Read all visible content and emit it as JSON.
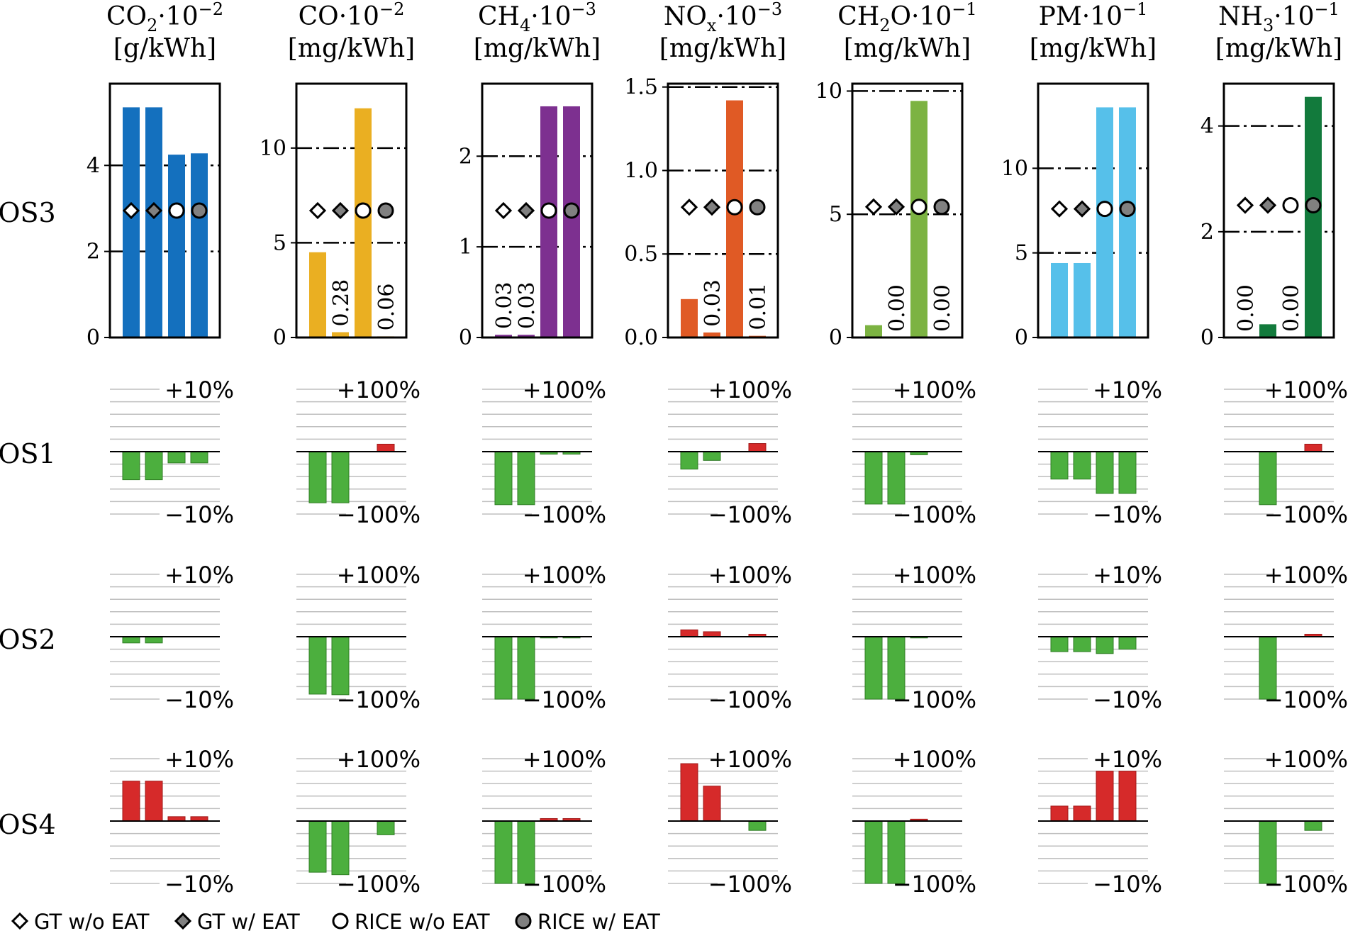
{
  "chart_data": {
    "type": "bar",
    "legend": {
      "placement": "bottom",
      "entries": [
        {
          "label": "GT w/o EAT",
          "marker": "diamond",
          "fill": "#ffffff"
        },
        {
          "label": "GT w/ EAT",
          "marker": "diamond",
          "fill": "#808080"
        },
        {
          "label": "RICE w/o EAT",
          "marker": "circle",
          "fill": "#ffffff"
        },
        {
          "label": "RICE w/ EAT",
          "marker": "circle",
          "fill": "#808080"
        }
      ]
    },
    "rows": [
      "OS3",
      "OS1",
      "OS2",
      "OS4"
    ],
    "panels": [
      {
        "header": {
          "base": "CO",
          "sub": "2",
          "rest": "·10",
          "exp": "−2",
          "unit": "[g/kWh]"
        },
        "color": "#1470be",
        "ylim": [
          0,
          5.9
        ],
        "yticks": [
          0,
          2,
          4
        ],
        "ytick_labels": [
          "0",
          "2",
          "4"
        ],
        "dashed_lines": [
          2,
          4
        ],
        "values": [
          5.35,
          5.35,
          4.25,
          4.28
        ],
        "value_labels": [],
        "markers_y": 2.95,
        "pct_labels": [
          "+10%",
          "−10%"
        ],
        "pct_scale": 10,
        "OS1": [
          -4.5,
          -4.5,
          -1.8,
          -1.8
        ],
        "OS2": [
          -1.0,
          -1.0,
          0,
          0
        ],
        "OS4": [
          6.4,
          6.4,
          0.7,
          0.7
        ]
      },
      {
        "header": {
          "base": "CO",
          "sub": "",
          "rest": "·10",
          "exp": "−2",
          "unit": "[mg/kWh]"
        },
        "color": "#eaaf22",
        "ylim": [
          0,
          13.4
        ],
        "yticks": [
          0,
          5,
          10
        ],
        "ytick_labels": [
          "0",
          "5",
          "10"
        ],
        "dashed_lines": [
          5,
          10
        ],
        "values": [
          4.5,
          0.28,
          12.1,
          0.06
        ],
        "value_labels": [
          "",
          "0.28",
          "",
          "0.06"
        ],
        "markers_y": 6.7,
        "pct_labels": [
          "+100%",
          "−100%"
        ],
        "pct_scale": 100,
        "OS1": [
          -82,
          -82,
          0,
          12
        ],
        "OS2": [
          -92,
          -93,
          0,
          0
        ],
        "OS4": [
          -82,
          -86,
          0,
          -22
        ]
      },
      {
        "header": {
          "base": "CH",
          "sub": "4",
          "rest": "·10",
          "exp": "−3",
          "unit": "[mg/kWh]"
        },
        "color": "#7d3090",
        "ylim": [
          0,
          2.8
        ],
        "yticks": [
          0,
          1,
          2
        ],
        "ytick_labels": [
          "0",
          "1",
          "2"
        ],
        "dashed_lines": [
          1,
          2
        ],
        "values": [
          0.03,
          0.03,
          2.55,
          2.55
        ],
        "value_labels": [
          "0.03",
          "0.03",
          "",
          ""
        ],
        "markers_y": 1.4,
        "pct_labels": [
          "+100%",
          "−100%"
        ],
        "pct_scale": 100,
        "OS1": [
          -85,
          -85,
          -4,
          -4
        ],
        "OS2": [
          -100,
          -100,
          -2,
          -2
        ],
        "OS4": [
          -100,
          -100,
          4,
          4
        ]
      },
      {
        "header": {
          "base": "NO",
          "sub": "x",
          "rest": "·10",
          "exp": "−3",
          "unit": "[mg/kWh]"
        },
        "color": "#e05a25",
        "ylim": [
          0,
          1.52
        ],
        "yticks": [
          0,
          0.5,
          1.0,
          1.5
        ],
        "ytick_labels": [
          "0.0",
          "0.5",
          "1.0",
          "1.5"
        ],
        "dashed_lines": [
          0.5,
          1.0,
          1.5
        ],
        "values": [
          0.23,
          0.03,
          1.42,
          0.01
        ],
        "value_labels": [
          "",
          "0.03",
          "",
          "0.01"
        ],
        "markers_y": 0.78,
        "pct_labels": [
          "+100%",
          "−100%"
        ],
        "pct_scale": 100,
        "OS1": [
          -28,
          -14,
          0,
          13
        ],
        "OS2": [
          11,
          8,
          0,
          4
        ],
        "OS4": [
          92,
          56,
          0,
          -15
        ]
      },
      {
        "header": {
          "base": "CH",
          "sub": "2",
          "rest": "O·10",
          "exp": "−1",
          "unit": "[mg/kWh]"
        },
        "color": "#7cb342",
        "ylim": [
          0,
          10.3
        ],
        "yticks": [
          0,
          5,
          10
        ],
        "ytick_labels": [
          "0",
          "5",
          "10"
        ],
        "dashed_lines": [
          5,
          10
        ],
        "values": [
          0.5,
          0.0,
          9.6,
          0.0
        ],
        "value_labels": [
          "",
          "0.00",
          "",
          "0.00"
        ],
        "markers_y": 5.3,
        "pct_labels": [
          "+100%",
          "−100%"
        ],
        "pct_scale": 100,
        "OS1": [
          -84,
          -84,
          -5,
          0
        ],
        "OS2": [
          -100,
          -100,
          -2,
          0
        ],
        "OS4": [
          -100,
          -100,
          3,
          0
        ]
      },
      {
        "header": {
          "base": "PM",
          "sub": "",
          "rest": "·10",
          "exp": "−1",
          "unit": "[mg/kWh]"
        },
        "color": "#56c0ea",
        "ylim": [
          0,
          15
        ],
        "yticks": [
          0,
          5,
          10
        ],
        "ytick_labels": [
          "0",
          "5",
          "10"
        ],
        "dashed_lines": [
          5,
          10
        ],
        "values": [
          4.4,
          4.4,
          13.6,
          13.6
        ],
        "value_labels": [],
        "markers_y": 7.6,
        "pct_labels": [
          "+10%",
          "−10%"
        ],
        "pct_scale": 10,
        "OS1": [
          -4.4,
          -4.4,
          -6.7,
          -6.7
        ],
        "OS2": [
          -2.4,
          -2.4,
          -2.7,
          -2.0
        ],
        "OS4": [
          2.4,
          2.4,
          8.0,
          8.0
        ]
      },
      {
        "header": {
          "base": "NH",
          "sub": "3",
          "rest": "·10",
          "exp": "−1",
          "unit": "[mg/kWh]"
        },
        "color": "#127a3c",
        "ylim": [
          0,
          4.8
        ],
        "yticks": [
          0,
          2,
          4
        ],
        "ytick_labels": [
          "0",
          "2",
          "4"
        ],
        "dashed_lines": [
          2,
          4
        ],
        "values": [
          0.0,
          0.25,
          0.0,
          4.55
        ],
        "value_labels": [
          "0.00",
          "",
          "0.00",
          ""
        ],
        "markers_y": 2.5,
        "pct_labels": [
          "+100%",
          "−100%"
        ],
        "pct_scale": 100,
        "OS1": [
          0,
          -85,
          0,
          12
        ],
        "OS2": [
          0,
          -100,
          0,
          4
        ],
        "OS4": [
          0,
          -100,
          0,
          -15
        ]
      }
    ]
  },
  "colors": {
    "increase": "#d62a2a",
    "decrease": "#4caf3e",
    "gridline": "#bfbfbf"
  }
}
